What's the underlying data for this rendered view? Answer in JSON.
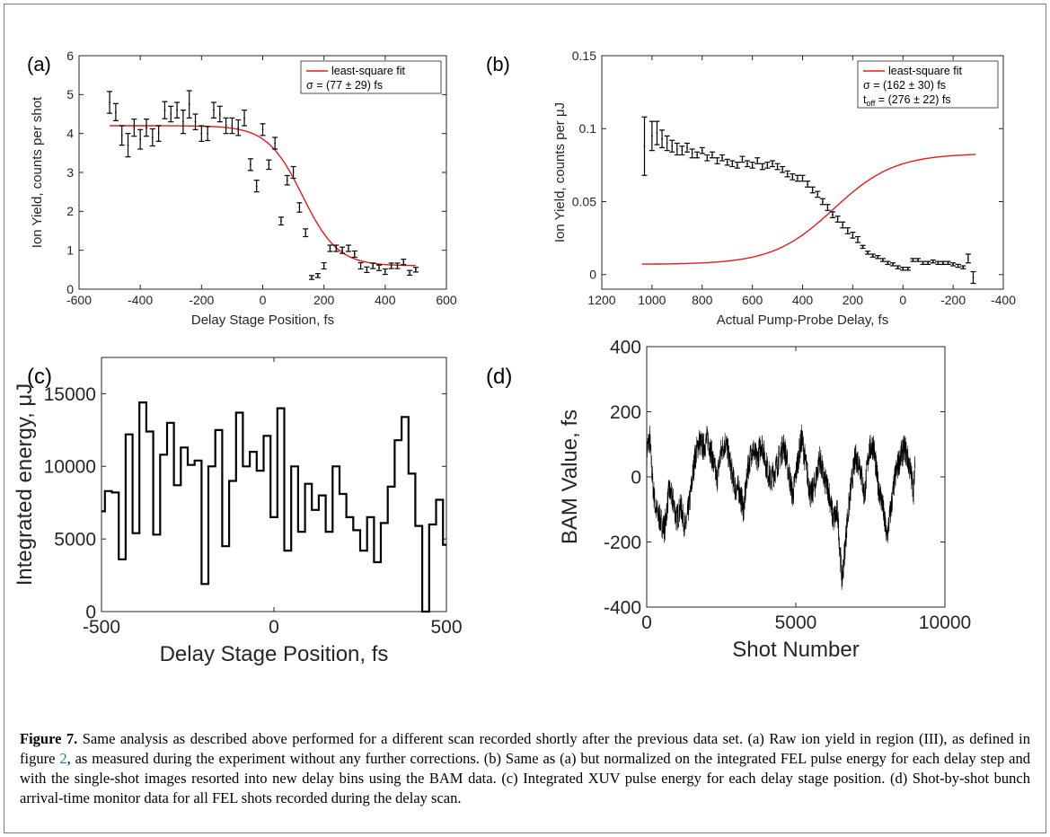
{
  "chart_data": [
    {
      "panel": "(a)",
      "type": "scatter",
      "xlabel": "Delay Stage Position, fs",
      "ylabel": "Ion Yield, counts per shot",
      "xlim": [
        -600,
        600
      ],
      "ylim": [
        0,
        6
      ],
      "xticks": [
        "-600",
        "-400",
        "-200",
        "0",
        "200",
        "400",
        "600"
      ],
      "yticks": [
        "0",
        "1",
        "2",
        "3",
        "4",
        "5",
        "6"
      ],
      "legend": {
        "placement": "top-right",
        "fit_label": "least-square fit",
        "sigma_text": "σ = (77 ± 29) fs"
      },
      "series": [
        {
          "x": [
            -500,
            -480,
            -460,
            -440,
            -420,
            -400,
            -380,
            -360,
            -340,
            -320,
            -300,
            -280,
            -260,
            -240,
            -220,
            -200,
            -180,
            -160,
            -140,
            -120,
            -100,
            -80,
            -60,
            -40,
            -20,
            0,
            20,
            40,
            60,
            80,
            100,
            120,
            140,
            160,
            180,
            200,
            220,
            240,
            260,
            280,
            300,
            320,
            340,
            360,
            380,
            400,
            420,
            440,
            460,
            480,
            500
          ],
          "y": [
            4.8,
            4.55,
            3.95,
            3.7,
            4.15,
            3.85,
            4.15,
            3.9,
            4.0,
            4.6,
            4.5,
            4.6,
            4.3,
            4.75,
            4.3,
            4.0,
            4.0,
            4.6,
            4.5,
            4.2,
            4.2,
            4.15,
            4.4,
            3.2,
            2.65,
            4.1,
            3.2,
            3.75,
            1.75,
            2.8,
            3.0,
            2.1,
            1.45,
            0.3,
            0.35,
            0.6,
            1.05,
            1.05,
            1.0,
            1.05,
            0.9,
            0.6,
            0.5,
            0.6,
            0.55,
            0.45,
            0.6,
            0.6,
            0.7,
            0.42,
            0.5
          ],
          "err": [
            0.28,
            0.22,
            0.25,
            0.3,
            0.22,
            0.25,
            0.22,
            0.22,
            0.2,
            0.22,
            0.2,
            0.2,
            0.3,
            0.35,
            0.2,
            0.2,
            0.18,
            0.2,
            0.2,
            0.2,
            0.2,
            0.2,
            0.2,
            0.15,
            0.15,
            0.15,
            0.12,
            0.15,
            0.1,
            0.12,
            0.15,
            0.12,
            0.1,
            0.05,
            0.05,
            0.08,
            0.08,
            0.08,
            0.08,
            0.08,
            0.08,
            0.08,
            0.07,
            0.07,
            0.07,
            0.07,
            0.07,
            0.07,
            0.07,
            0.06,
            0.06
          ]
        }
      ],
      "fit": {
        "plateau": 4.2,
        "floor": 0.6,
        "center": 130,
        "width": 77
      }
    },
    {
      "panel": "(b)",
      "type": "scatter",
      "xlabel": "Actual Pump-Probe Delay, fs",
      "ylabel": "Ion Yield, counts per μJ",
      "xlim": [
        1200,
        -400
      ],
      "ylim": [
        -0.01,
        0.15
      ],
      "xticks": [
        "1200",
        "1000",
        "800",
        "600",
        "400",
        "200",
        "0",
        "-200",
        "-400"
      ],
      "yticks": [
        "0",
        "0.05",
        "0.1",
        "0.15"
      ],
      "legend": {
        "placement": "top-right",
        "fit_label": "least-square fit",
        "sigma_text": "σ = (162 ± 30) fs",
        "toff_prefix": "t",
        "toff_sub": "off",
        "toff_value": " = (276 ± 22) fs"
      },
      "series": [
        {
          "x": [
            1030,
            1000,
            980,
            960,
            940,
            920,
            900,
            880,
            860,
            840,
            820,
            800,
            780,
            760,
            740,
            720,
            700,
            680,
            660,
            640,
            620,
            600,
            580,
            560,
            540,
            520,
            500,
            480,
            460,
            440,
            420,
            400,
            380,
            360,
            340,
            320,
            300,
            280,
            260,
            240,
            220,
            200,
            180,
            160,
            140,
            120,
            100,
            80,
            60,
            40,
            20,
            0,
            -20,
            -40,
            -60,
            -80,
            -100,
            -120,
            -140,
            -160,
            -180,
            -200,
            -220,
            -240,
            -260,
            -280
          ],
          "y": [
            0.088,
            0.095,
            0.097,
            0.093,
            0.09,
            0.088,
            0.086,
            0.085,
            0.087,
            0.083,
            0.082,
            0.085,
            0.08,
            0.082,
            0.078,
            0.08,
            0.077,
            0.076,
            0.075,
            0.079,
            0.076,
            0.075,
            0.078,
            0.074,
            0.075,
            0.076,
            0.074,
            0.072,
            0.069,
            0.067,
            0.066,
            0.066,
            0.062,
            0.058,
            0.055,
            0.05,
            0.046,
            0.041,
            0.038,
            0.034,
            0.03,
            0.027,
            0.024,
            0.019,
            0.015,
            0.013,
            0.012,
            0.01,
            0.008,
            0.007,
            0.005,
            0.004,
            0.004,
            0.01,
            0.01,
            0.008,
            0.008,
            0.009,
            0.008,
            0.008,
            0.008,
            0.007,
            0.006,
            0.005,
            0.011,
            -0.002
          ],
          "err": [
            0.02,
            0.01,
            0.008,
            0.006,
            0.005,
            0.004,
            0.004,
            0.003,
            0.003,
            0.003,
            0.002,
            0.002,
            0.002,
            0.002,
            0.002,
            0.002,
            0.002,
            0.002,
            0.002,
            0.002,
            0.002,
            0.002,
            0.002,
            0.002,
            0.002,
            0.002,
            0.002,
            0.002,
            0.002,
            0.002,
            0.002,
            0.002,
            0.002,
            0.002,
            0.002,
            0.002,
            0.002,
            0.002,
            0.002,
            0.002,
            0.002,
            0.002,
            0.002,
            0.001,
            0.001,
            0.001,
            0.001,
            0.001,
            0.001,
            0.001,
            0.001,
            0.001,
            0.001,
            0.001,
            0.001,
            0.001,
            0.001,
            0.001,
            0.001,
            0.001,
            0.001,
            0.001,
            0.001,
            0.001,
            0.003,
            0.004
          ]
        }
      ],
      "fit": {
        "plateau": 0.083,
        "floor": 0.007,
        "center": 276,
        "width": 162
      }
    },
    {
      "panel": "(c)",
      "type": "line",
      "style": "step",
      "xlabel": "Delay Stage Position, fs",
      "ylabel": "Integrated energy, μJ",
      "xlim": [
        -500,
        500
      ],
      "ylim": [
        0,
        17500
      ],
      "xticks": [
        "-500",
        "0",
        "500"
      ],
      "yticks": [
        "0",
        "5000",
        "10000",
        "15000"
      ],
      "series": [
        {
          "x": [
            -500,
            -480,
            -460,
            -440,
            -420,
            -400,
            -380,
            -360,
            -340,
            -320,
            -300,
            -280,
            -260,
            -240,
            -220,
            -200,
            -180,
            -160,
            -140,
            -120,
            -100,
            -80,
            -60,
            -40,
            -20,
            0,
            20,
            40,
            60,
            80,
            100,
            120,
            140,
            160,
            180,
            200,
            220,
            240,
            260,
            280,
            300,
            320,
            340,
            360,
            380,
            400,
            420,
            440,
            460,
            480,
            500
          ],
          "y": [
            6900,
            8300,
            8200,
            3600,
            12200,
            5400,
            14400,
            12400,
            5300,
            10800,
            13000,
            8700,
            11300,
            10100,
            10400,
            1900,
            10000,
            12500,
            4500,
            9000,
            13700,
            10000,
            11000,
            9700,
            12100,
            6500,
            14000,
            4200,
            10000,
            5500,
            8800,
            7000,
            8000,
            5500,
            10000,
            8100,
            6500,
            5600,
            4200,
            6500,
            3400,
            6100,
            8600,
            11800,
            13400,
            9500,
            5900,
            0,
            6000,
            7700,
            4600
          ]
        }
      ]
    },
    {
      "panel": "(d)",
      "type": "line",
      "xlabel": "Shot Number",
      "ylabel": "BAM Value, fs",
      "xlim": [
        0,
        10000
      ],
      "ylim": [
        -400,
        400
      ],
      "xticks": [
        "0",
        "5000",
        "10000"
      ],
      "yticks": [
        "-400",
        "-200",
        "0",
        "200",
        "400"
      ],
      "series": [
        {
          "x": [
            0,
            100,
            200,
            300,
            450,
            600,
            750,
            900,
            1000,
            1150,
            1300,
            1450,
            1600,
            1750,
            1900,
            2050,
            2200,
            2350,
            2500,
            2650,
            2800,
            2950,
            3100,
            3250,
            3400,
            3550,
            3700,
            3850,
            4000,
            4150,
            4300,
            4450,
            4600,
            4750,
            4900,
            5050,
            5200,
            5350,
            5500,
            5650,
            5800,
            5950,
            6100,
            6250,
            6400,
            6550,
            6700,
            6850,
            7000,
            7150,
            7300,
            7450,
            7600,
            7750,
            7900,
            8050,
            8200,
            8350,
            8500,
            8650,
            8800,
            8950,
            9000
          ],
          "y": [
            80,
            120,
            -20,
            -100,
            -130,
            -160,
            -40,
            -80,
            -130,
            -90,
            -160,
            -70,
            50,
            110,
            90,
            120,
            60,
            -10,
            80,
            110,
            40,
            -30,
            -40,
            -100,
            30,
            90,
            50,
            110,
            40,
            -10,
            20,
            60,
            100,
            20,
            -60,
            40,
            120,
            30,
            -60,
            -20,
            60,
            -10,
            -40,
            -130,
            -110,
            -320,
            -160,
            -30,
            60,
            40,
            -60,
            80,
            100,
            -20,
            -80,
            -190,
            -90,
            10,
            60,
            90,
            40,
            -40,
            30
          ],
          "noise": 45
        }
      ]
    }
  ],
  "panels": {
    "a": "(a)",
    "b": "(b)",
    "c": "(c)",
    "d": "(d)"
  },
  "caption": {
    "label": "Figure 7.",
    "part1": " Same analysis as described above performed for a different scan recorded shortly after the previous data set. (a) Raw ion yield in region (III), as defined in figure ",
    "ref": "2",
    "part2": ", as measured during the experiment without any further corrections. (b) Same as (a) but normalized on the integrated FEL pulse energy for each delay step and with the single-shot images resorted into new delay bins using the BAM data. (c) Integrated XUV pulse energy for each delay stage position. (d) Shot-by-shot bunch arrival-time monitor data for all FEL shots recorded during the delay scan."
  }
}
